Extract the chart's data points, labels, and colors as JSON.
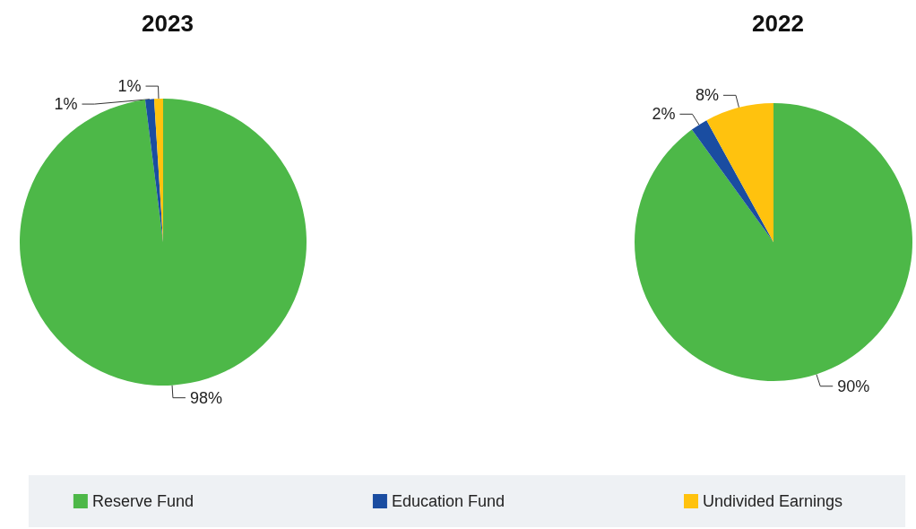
{
  "chart_data": [
    {
      "type": "pie",
      "title": "2023",
      "categories": [
        "Reserve Fund",
        "Education Fund",
        "Undivided Earnings"
      ],
      "values": [
        98,
        1,
        1
      ],
      "colors": [
        "#4db848",
        "#1a4da1",
        "#ffc20e"
      ],
      "value_labels": [
        "98%",
        "1%",
        "1%"
      ],
      "legend": "bottom"
    },
    {
      "type": "pie",
      "title": "2022",
      "categories": [
        null,
        null,
        null
      ],
      "values": [
        90,
        2,
        8
      ],
      "colors": [
        "#4db848",
        "#1a4da1",
        "#ffc20e"
      ],
      "value_labels": [
        "90%",
        "2%",
        "8%"
      ]
    }
  ]
}
